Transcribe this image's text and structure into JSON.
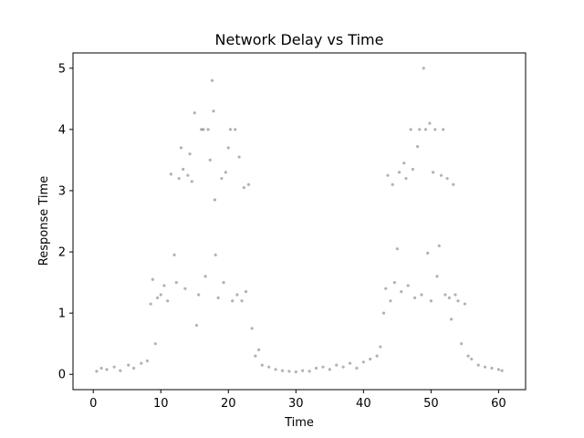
{
  "chart_data": {
    "type": "scatter",
    "title": "Network Delay vs Time",
    "xlabel": "Time",
    "ylabel": "Response Time",
    "xlim": [
      -3,
      64
    ],
    "ylim": [
      -0.25,
      5.25
    ],
    "x_ticks": [
      0,
      10,
      20,
      30,
      40,
      50,
      60
    ],
    "y_ticks": [
      0,
      1,
      2,
      3,
      4,
      5
    ],
    "x_tick_labels": [
      "0",
      "10",
      "20",
      "30",
      "40",
      "50",
      "60"
    ],
    "y_tick_labels": [
      "0",
      "1",
      "2",
      "3",
      "4",
      "5"
    ],
    "grid": false,
    "legend": "none",
    "marker_color": "#000000",
    "marker_alpha": 0.3,
    "series": [
      {
        "points": [
          [
            0.5,
            0.05
          ],
          [
            1.2,
            0.1
          ],
          [
            2.0,
            0.08
          ],
          [
            3.1,
            0.12
          ],
          [
            4.0,
            0.06
          ],
          [
            5.2,
            0.15
          ],
          [
            6.0,
            0.1
          ],
          [
            7.1,
            0.18
          ],
          [
            8.0,
            0.22
          ],
          [
            8.5,
            1.15
          ],
          [
            8.8,
            1.55
          ],
          [
            9.2,
            0.5
          ],
          [
            9.5,
            1.25
          ],
          [
            10.0,
            1.3
          ],
          [
            10.5,
            1.45
          ],
          [
            11.0,
            1.2
          ],
          [
            11.5,
            3.27
          ],
          [
            12.0,
            1.95
          ],
          [
            12.3,
            1.5
          ],
          [
            12.7,
            3.2
          ],
          [
            13.0,
            3.7
          ],
          [
            13.3,
            3.35
          ],
          [
            13.6,
            1.4
          ],
          [
            14.0,
            3.25
          ],
          [
            14.3,
            3.6
          ],
          [
            14.6,
            3.15
          ],
          [
            15.0,
            4.27
          ],
          [
            15.3,
            0.8
          ],
          [
            15.6,
            1.3
          ],
          [
            16.0,
            4.0
          ],
          [
            16.3,
            4.0
          ],
          [
            16.6,
            1.6
          ],
          [
            17.0,
            4.0
          ],
          [
            17.3,
            3.5
          ],
          [
            17.6,
            4.8
          ],
          [
            17.8,
            4.3
          ],
          [
            18.0,
            2.85
          ],
          [
            18.1,
            1.95
          ],
          [
            18.5,
            1.25
          ],
          [
            19.0,
            3.2
          ],
          [
            19.3,
            1.5
          ],
          [
            19.6,
            3.3
          ],
          [
            20.0,
            3.7
          ],
          [
            20.3,
            4.0
          ],
          [
            20.6,
            1.2
          ],
          [
            21.0,
            4.0
          ],
          [
            21.3,
            1.3
          ],
          [
            21.6,
            3.55
          ],
          [
            22.0,
            1.2
          ],
          [
            22.3,
            3.05
          ],
          [
            22.6,
            1.35
          ],
          [
            23.0,
            3.1
          ],
          [
            23.5,
            0.75
          ],
          [
            24.0,
            0.3
          ],
          [
            24.5,
            0.4
          ],
          [
            25.0,
            0.15
          ],
          [
            26.0,
            0.12
          ],
          [
            27.0,
            0.08
          ],
          [
            28.0,
            0.06
          ],
          [
            29.0,
            0.05
          ],
          [
            30.0,
            0.04
          ],
          [
            31.0,
            0.06
          ],
          [
            32.0,
            0.05
          ],
          [
            33.0,
            0.1
          ],
          [
            34.0,
            0.12
          ],
          [
            35.0,
            0.08
          ],
          [
            36.0,
            0.15
          ],
          [
            37.0,
            0.12
          ],
          [
            38.0,
            0.18
          ],
          [
            39.0,
            0.1
          ],
          [
            40.0,
            0.2
          ],
          [
            41.0,
            0.25
          ],
          [
            42.0,
            0.3
          ],
          [
            42.5,
            0.45
          ],
          [
            43.0,
            1.0
          ],
          [
            43.3,
            1.4
          ],
          [
            43.6,
            3.25
          ],
          [
            44.0,
            1.2
          ],
          [
            44.3,
            3.1
          ],
          [
            44.6,
            1.5
          ],
          [
            45.0,
            2.05
          ],
          [
            45.3,
            3.3
          ],
          [
            45.6,
            1.35
          ],
          [
            46.0,
            3.45
          ],
          [
            46.3,
            3.2
          ],
          [
            46.6,
            1.45
          ],
          [
            47.0,
            4.0
          ],
          [
            47.3,
            3.35
          ],
          [
            47.6,
            1.25
          ],
          [
            48.0,
            3.72
          ],
          [
            48.3,
            4.0
          ],
          [
            48.6,
            1.3
          ],
          [
            48.9,
            5.0
          ],
          [
            49.2,
            4.0
          ],
          [
            49.5,
            1.98
          ],
          [
            49.8,
            4.1
          ],
          [
            50.0,
            1.2
          ],
          [
            50.3,
            3.3
          ],
          [
            50.6,
            4.0
          ],
          [
            50.9,
            1.6
          ],
          [
            51.2,
            2.1
          ],
          [
            51.5,
            3.25
          ],
          [
            51.8,
            4.0
          ],
          [
            52.1,
            1.3
          ],
          [
            52.4,
            3.2
          ],
          [
            52.7,
            1.25
          ],
          [
            53.0,
            0.9
          ],
          [
            53.3,
            3.1
          ],
          [
            53.6,
            1.3
          ],
          [
            54.0,
            1.2
          ],
          [
            54.5,
            0.5
          ],
          [
            55.0,
            1.15
          ],
          [
            55.5,
            0.3
          ],
          [
            56.0,
            0.25
          ],
          [
            57.0,
            0.15
          ],
          [
            58.0,
            0.12
          ],
          [
            59.0,
            0.1
          ],
          [
            60.0,
            0.08
          ],
          [
            60.5,
            0.06
          ]
        ]
      }
    ]
  }
}
